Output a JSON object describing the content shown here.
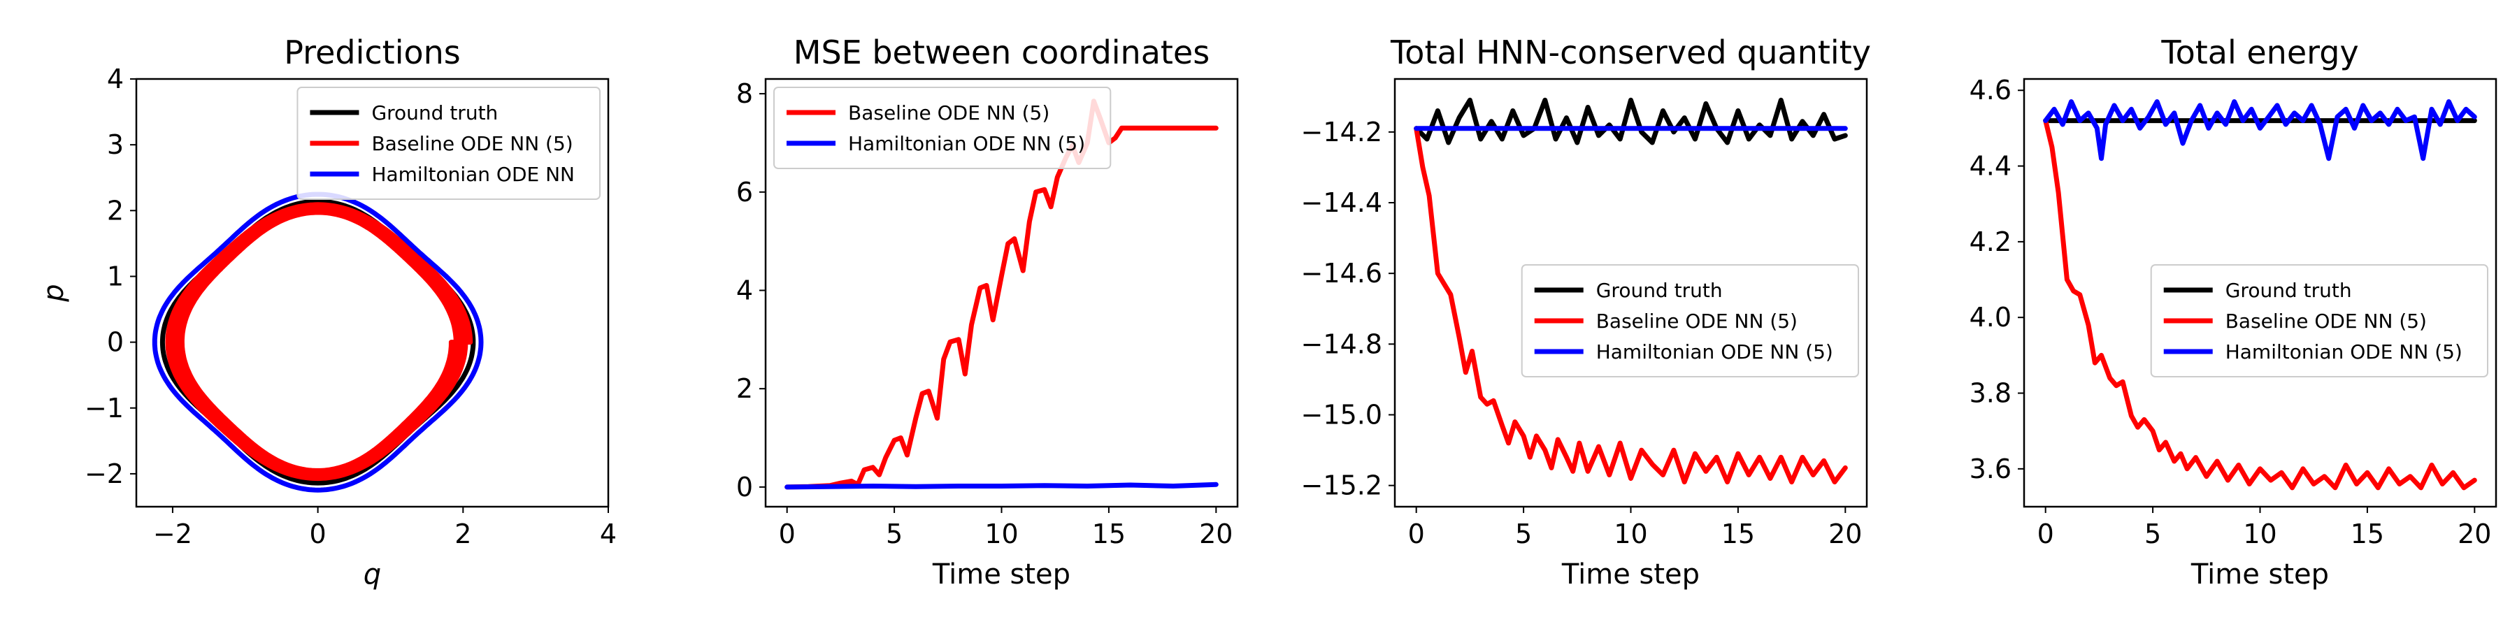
{
  "chart_data": [
    {
      "type": "line",
      "title": "Predictions",
      "xlabel": "q",
      "ylabel": "p",
      "xlim": [
        -2.5,
        4
      ],
      "ylim": [
        -2.5,
        4
      ],
      "xticks": [
        -2,
        0,
        2,
        4
      ],
      "yticks": [
        -2,
        -1,
        0,
        1,
        2,
        3,
        4
      ],
      "xtick_labels": [
        "−2",
        "0",
        "2",
        "4"
      ],
      "ytick_labels": [
        "−2",
        "−1",
        "0",
        "1",
        "2",
        "3",
        "4"
      ],
      "grid": false,
      "legend_position": "top-right",
      "legend": [
        "Ground truth",
        "Baseline ODE NN (5)",
        "Hamiltonian ODE NN"
      ],
      "series": [
        {
          "name": "Ground truth",
          "color": "#000000",
          "shape": "closed-orbit",
          "q_extent": [
            -2.0,
            2.0
          ],
          "p_extent": [
            -2.0,
            2.0
          ]
        },
        {
          "name": "Baseline ODE NN (5)",
          "color": "#ff0000",
          "shape": "spiral-orbit",
          "q_extent_start": [
            -2.0,
            2.0
          ],
          "q_extent_end": [
            -1.75,
            1.75
          ],
          "p_extent_start": [
            -2.0,
            2.0
          ],
          "p_extent_end": [
            -1.85,
            1.85
          ]
        },
        {
          "name": "Hamiltonian ODE NN",
          "color": "#0000ff",
          "shape": "closed-orbit",
          "q_extent": [
            -2.1,
            2.1
          ],
          "p_extent": [
            -2.1,
            2.1
          ]
        }
      ]
    },
    {
      "type": "line",
      "title": "MSE between coordinates",
      "xlabel": "Time step",
      "ylabel": "",
      "xlim": [
        -1,
        21
      ],
      "ylim": [
        -0.4,
        8.3
      ],
      "xticks": [
        0,
        5,
        10,
        15,
        20
      ],
      "yticks": [
        0,
        2,
        4,
        6,
        8
      ],
      "xtick_labels": [
        "0",
        "5",
        "10",
        "15",
        "20"
      ],
      "ytick_labels": [
        "0",
        "2",
        "4",
        "6",
        "8"
      ],
      "grid": false,
      "legend_position": "top-left",
      "legend": [
        "Baseline ODE NN (5)",
        "Hamiltonian ODE NN (5)"
      ],
      "series": [
        {
          "name": "Baseline ODE NN (5)",
          "color": "#ff0000",
          "x": [
            0,
            1,
            2,
            2.5,
            3,
            3.3,
            3.6,
            4.0,
            4.3,
            4.6,
            5.0,
            5.3,
            5.6,
            6.0,
            6.3,
            6.6,
            7.0,
            7.3,
            7.6,
            8.0,
            8.3,
            8.6,
            9.0,
            9.3,
            9.6,
            10.0,
            10.3,
            10.6,
            11.0,
            11.3,
            11.6,
            12.0,
            12.3,
            12.6,
            13.0,
            13.3,
            13.6,
            14.0,
            14.3,
            14.6,
            15.0,
            15.3,
            15.6,
            16.0,
            16.3,
            16.6,
            17.0,
            17.3,
            17.6,
            18.0,
            18.3,
            18.6,
            19.0,
            19.3,
            19.6,
            20.0
          ],
          "y": [
            0,
            0.01,
            0.03,
            0.08,
            0.12,
            0.05,
            0.35,
            0.4,
            0.25,
            0.6,
            0.95,
            1.0,
            0.65,
            1.4,
            1.9,
            1.95,
            1.4,
            2.6,
            2.95,
            3.0,
            2.3,
            3.3,
            4.05,
            4.1,
            3.4,
            4.3,
            4.95,
            5.05,
            4.4,
            5.4,
            6.0,
            6.05,
            5.7,
            6.3,
            6.7,
            6.95,
            6.6,
            7.0,
            7.85,
            7.5,
            7.0,
            7.1,
            7.3,
            7.3,
            7.3,
            7.3,
            7.3,
            7.3,
            7.3,
            7.3,
            7.3,
            7.3,
            7.3,
            7.3,
            7.3,
            7.3
          ]
        },
        {
          "name": "Hamiltonian ODE NN (5)",
          "color": "#0000ff",
          "x": [
            0,
            2,
            4,
            6,
            8,
            10,
            12,
            14,
            16,
            18,
            20
          ],
          "y": [
            0,
            0.01,
            0.02,
            0.01,
            0.02,
            0.02,
            0.03,
            0.02,
            0.04,
            0.02,
            0.05
          ]
        }
      ]
    },
    {
      "type": "line",
      "title": "Total HNN-conserved quantity",
      "xlabel": "Time step",
      "ylabel": "",
      "xlim": [
        -1,
        21
      ],
      "ylim": [
        -15.26,
        -14.05
      ],
      "xticks": [
        0,
        5,
        10,
        15,
        20
      ],
      "yticks": [
        -15.2,
        -15.0,
        -14.8,
        -14.6,
        -14.4,
        -14.2
      ],
      "xtick_labels": [
        "0",
        "5",
        "10",
        "15",
        "20"
      ],
      "ytick_labels": [
        "−15.2",
        "−15.0",
        "−14.8",
        "−14.6",
        "−14.4",
        "−14.2"
      ],
      "grid": false,
      "legend_position": "center-right",
      "legend": [
        "Ground truth",
        "Baseline ODE NN (5)",
        "Hamiltonian ODE NN (5)"
      ],
      "series": [
        {
          "name": "Ground truth",
          "color": "#000000",
          "x": [
            0,
            0.5,
            1.0,
            1.5,
            2.0,
            2.5,
            3.0,
            3.5,
            4.0,
            4.5,
            5.0,
            5.5,
            6.0,
            6.5,
            7.0,
            7.5,
            8.0,
            8.5,
            9.0,
            9.5,
            10.0,
            10.5,
            11.0,
            11.5,
            12.0,
            12.5,
            13.0,
            13.5,
            14.0,
            14.5,
            15.0,
            15.5,
            16.0,
            16.5,
            17.0,
            17.5,
            18.0,
            18.5,
            19.0,
            19.5,
            20.0
          ],
          "y": [
            -14.19,
            -14.22,
            -14.14,
            -14.23,
            -14.16,
            -14.11,
            -14.22,
            -14.17,
            -14.22,
            -14.14,
            -14.21,
            -14.19,
            -14.11,
            -14.22,
            -14.16,
            -14.23,
            -14.13,
            -14.21,
            -14.18,
            -14.22,
            -14.11,
            -14.2,
            -14.23,
            -14.14,
            -14.2,
            -14.16,
            -14.22,
            -14.12,
            -14.19,
            -14.23,
            -14.14,
            -14.22,
            -14.18,
            -14.21,
            -14.11,
            -14.22,
            -14.17,
            -14.21,
            -14.15,
            -14.22,
            -14.21
          ]
        },
        {
          "name": "Baseline ODE NN (5)",
          "color": "#ff0000",
          "x": [
            0,
            0.3,
            0.6,
            1.0,
            1.3,
            1.6,
            2.0,
            2.3,
            2.6,
            3.0,
            3.3,
            3.6,
            4.0,
            4.3,
            4.6,
            5.0,
            5.3,
            5.6,
            6.0,
            6.3,
            6.6,
            7.0,
            7.3,
            7.6,
            8.0,
            8.5,
            9.0,
            9.5,
            10.0,
            10.5,
            11.0,
            11.5,
            12.0,
            12.5,
            13.0,
            13.5,
            14.0,
            14.5,
            15.0,
            15.5,
            16.0,
            16.5,
            17.0,
            17.5,
            18.0,
            18.5,
            19.0,
            19.5,
            20.0
          ],
          "y": [
            -14.19,
            -14.3,
            -14.38,
            -14.6,
            -14.63,
            -14.66,
            -14.78,
            -14.88,
            -14.82,
            -14.95,
            -14.97,
            -14.96,
            -15.03,
            -15.08,
            -15.02,
            -15.06,
            -15.12,
            -15.06,
            -15.1,
            -15.15,
            -15.07,
            -15.12,
            -15.16,
            -15.08,
            -15.16,
            -15.09,
            -15.17,
            -15.08,
            -15.18,
            -15.1,
            -15.14,
            -15.17,
            -15.1,
            -15.19,
            -15.11,
            -15.16,
            -15.12,
            -15.19,
            -15.11,
            -15.17,
            -15.12,
            -15.18,
            -15.12,
            -15.19,
            -15.12,
            -15.17,
            -15.13,
            -15.19,
            -15.15
          ]
        },
        {
          "name": "Hamiltonian ODE NN (5)",
          "color": "#0000ff",
          "x": [
            0,
            5,
            10,
            15,
            20
          ],
          "y": [
            -14.19,
            -14.19,
            -14.19,
            -14.19,
            -14.19
          ]
        }
      ]
    },
    {
      "type": "line",
      "title": "Total energy",
      "xlabel": "Time step",
      "ylabel": "",
      "xlim": [
        -1,
        21
      ],
      "ylim": [
        3.5,
        4.63
      ],
      "xticks": [
        0,
        5,
        10,
        15,
        20
      ],
      "yticks": [
        3.6,
        3.8,
        4.0,
        4.2,
        4.4,
        4.6
      ],
      "xtick_labels": [
        "0",
        "5",
        "10",
        "15",
        "20"
      ],
      "ytick_labels": [
        "3.6",
        "3.8",
        "4.0",
        "4.2",
        "4.4",
        "4.6"
      ],
      "grid": false,
      "legend_position": "center-right",
      "legend": [
        "Ground truth",
        "Baseline ODE NN (5)",
        "Hamiltonian ODE NN (5)"
      ],
      "series": [
        {
          "name": "Ground truth",
          "color": "#000000",
          "x": [
            0,
            20
          ],
          "y": [
            4.52,
            4.52
          ]
        },
        {
          "name": "Baseline ODE NN (5)",
          "color": "#ff0000",
          "x": [
            0,
            0.3,
            0.6,
            1.0,
            1.3,
            1.6,
            2.0,
            2.3,
            2.6,
            3.0,
            3.3,
            3.6,
            4.0,
            4.3,
            4.6,
            5.0,
            5.3,
            5.6,
            6.0,
            6.3,
            6.6,
            7.0,
            7.5,
            8.0,
            8.5,
            9.0,
            9.5,
            10.0,
            10.5,
            11.0,
            11.5,
            12.0,
            12.5,
            13.0,
            13.5,
            14.0,
            14.5,
            15.0,
            15.5,
            16.0,
            16.5,
            17.0,
            17.5,
            18.0,
            18.5,
            19.0,
            19.5,
            20.0
          ],
          "y": [
            4.52,
            4.45,
            4.33,
            4.1,
            4.07,
            4.06,
            3.98,
            3.88,
            3.9,
            3.84,
            3.82,
            3.83,
            3.74,
            3.71,
            3.73,
            3.7,
            3.65,
            3.67,
            3.62,
            3.64,
            3.6,
            3.63,
            3.58,
            3.62,
            3.57,
            3.61,
            3.56,
            3.6,
            3.57,
            3.59,
            3.55,
            3.6,
            3.56,
            3.58,
            3.55,
            3.61,
            3.56,
            3.59,
            3.55,
            3.6,
            3.56,
            3.58,
            3.55,
            3.61,
            3.56,
            3.59,
            3.55,
            3.57
          ]
        },
        {
          "name": "Hamiltonian ODE NN (5)",
          "color": "#0000ff",
          "x": [
            0,
            0.4,
            0.8,
            1.2,
            1.6,
            2.0,
            2.4,
            2.6,
            2.8,
            3.2,
            3.6,
            4.0,
            4.4,
            4.8,
            5.2,
            5.6,
            6.0,
            6.4,
            6.8,
            7.2,
            7.6,
            8.0,
            8.4,
            8.8,
            9.2,
            9.6,
            10.0,
            10.4,
            10.8,
            11.2,
            11.6,
            12.0,
            12.4,
            12.8,
            13.2,
            13.6,
            14.0,
            14.4,
            14.8,
            15.2,
            15.6,
            16.0,
            16.4,
            16.8,
            17.2,
            17.6,
            18.0,
            18.4,
            18.8,
            19.2,
            19.6,
            20.0
          ],
          "y": [
            4.52,
            4.55,
            4.51,
            4.57,
            4.52,
            4.54,
            4.5,
            4.42,
            4.51,
            4.56,
            4.52,
            4.55,
            4.5,
            4.53,
            4.57,
            4.51,
            4.54,
            4.46,
            4.52,
            4.56,
            4.5,
            4.54,
            4.51,
            4.57,
            4.52,
            4.55,
            4.5,
            4.53,
            4.56,
            4.51,
            4.54,
            4.52,
            4.56,
            4.51,
            4.42,
            4.53,
            4.55,
            4.5,
            4.56,
            4.52,
            4.54,
            4.51,
            4.55,
            4.52,
            4.53,
            4.42,
            4.55,
            4.51,
            4.57,
            4.52,
            4.55,
            4.53
          ]
        }
      ]
    }
  ]
}
